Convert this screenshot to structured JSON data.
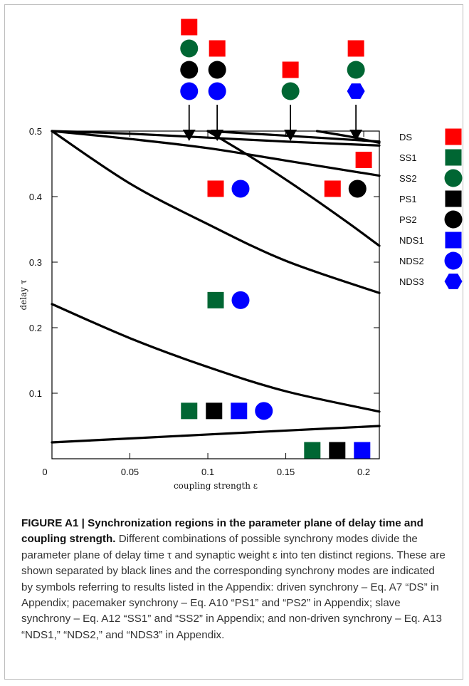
{
  "chart_data": {
    "type": "line",
    "xlabel": "coupling strength ε",
    "ylabel": "delay τ",
    "xlim": [
      0,
      0.21
    ],
    "ylim": [
      0,
      0.5
    ],
    "x_ticks": [
      "0",
      "0.05",
      "0.1",
      "0.15",
      "0.2"
    ],
    "y_ticks": [
      "0.1",
      "0.2",
      "0.3",
      "0.4",
      "0.5"
    ],
    "colors": {
      "red": "#ff0000",
      "green": "#006633",
      "black": "#000000",
      "blue": "#0000ff"
    },
    "boundaries": [
      {
        "x": [
          0,
          0.05,
          0.1,
          0.15,
          0.21
        ],
        "y": [
          0.025,
          0.031,
          0.037,
          0.043,
          0.05
        ]
      },
      {
        "x": [
          0,
          0.05,
          0.1,
          0.15,
          0.21
        ],
        "y": [
          0.236,
          0.184,
          0.14,
          0.103,
          0.072
        ]
      },
      {
        "x": [
          0,
          0.05,
          0.1,
          0.15,
          0.21
        ],
        "y": [
          0.5,
          0.42,
          0.358,
          0.302,
          0.253
        ]
      },
      {
        "x": [
          0.1,
          0.13,
          0.16,
          0.19,
          0.21
        ],
        "y": [
          0.5,
          0.457,
          0.41,
          0.36,
          0.325
        ]
      },
      {
        "x": [
          0,
          0.05,
          0.1,
          0.15,
          0.21
        ],
        "y": [
          0.5,
          0.488,
          0.474,
          0.455,
          0.432
        ]
      },
      {
        "x": [
          0,
          0.05,
          0.1,
          0.15,
          0.21
        ],
        "y": [
          0.5,
          0.496,
          0.49,
          0.484,
          0.478
        ]
      },
      {
        "x": [
          0.1,
          0.15,
          0.21
        ],
        "y": [
          0.5,
          0.493,
          0.484
        ]
      },
      {
        "x": [
          0.17,
          0.19,
          0.21
        ],
        "y": [
          0.5,
          0.492,
          0.482
        ]
      }
    ],
    "legend": [
      {
        "label": "DS",
        "shape": "square",
        "color": "#ff0000"
      },
      {
        "label": "SS1",
        "shape": "square",
        "color": "#006633"
      },
      {
        "label": "SS2",
        "shape": "circle",
        "color": "#006633"
      },
      {
        "label": "PS1",
        "shape": "square",
        "color": "#000000"
      },
      {
        "label": "PS2",
        "shape": "circle",
        "color": "#000000"
      },
      {
        "label": "NDS1",
        "shape": "square",
        "color": "#0000ff"
      },
      {
        "label": "NDS2",
        "shape": "circle",
        "color": "#0000ff"
      },
      {
        "label": "NDS3",
        "shape": "hexagon",
        "color": "#0000ff"
      }
    ],
    "region_markers": [
      {
        "x": 0.2,
        "y": 0.456,
        "modes": [
          "DS"
        ]
      },
      {
        "x": 0.105,
        "y": 0.412,
        "modes": [
          "DS",
          "NDS2"
        ]
      },
      {
        "x": 0.18,
        "y": 0.412,
        "modes": [
          "DS",
          "PS2"
        ]
      },
      {
        "x": 0.105,
        "y": 0.242,
        "modes": [
          "SS1",
          "NDS2"
        ]
      },
      {
        "x": 0.088,
        "y": 0.073,
        "modes": [
          "SS1",
          "PS1",
          "NDS1",
          "NDS2"
        ]
      },
      {
        "x": 0.167,
        "y": 0.013,
        "modes": [
          "SS1",
          "PS1",
          "NDS1"
        ]
      }
    ],
    "top_markers": [
      {
        "x": 0.088,
        "modes": [
          "DS",
          "SS2",
          "PS2",
          "NDS2"
        ]
      },
      {
        "x": 0.106,
        "modes": [
          "DS",
          "PS2",
          "NDS2"
        ]
      },
      {
        "x": 0.153,
        "modes": [
          "DS",
          "SS2"
        ]
      },
      {
        "x": 0.195,
        "modes": [
          "DS",
          "SS2",
          "NDS3"
        ]
      }
    ]
  },
  "caption": {
    "figure_label": "FIGURE A1 | Synchronization regions in the parameter plane of delay time and coupling strength.",
    "text": "Different combinations of possible synchrony modes divide the parameter plane of delay time τ and synaptic weight ε into ten distinct regions. These are shown separated by black lines and the corresponding synchrony modes are indicated by symbols referring to results listed in the Appendix: driven synchrony – Eq. A7 “DS” in Appendix; pacemaker synchrony – Eq. A10 “PS1” and “PS2” in Appendix; slave synchrony – Eq. A12 “SS1” and “SS2” in Appendix; and non-driven synchrony – Eq. A13 “NDS1,” “NDS2,” and “NDS3” in Appendix."
  }
}
